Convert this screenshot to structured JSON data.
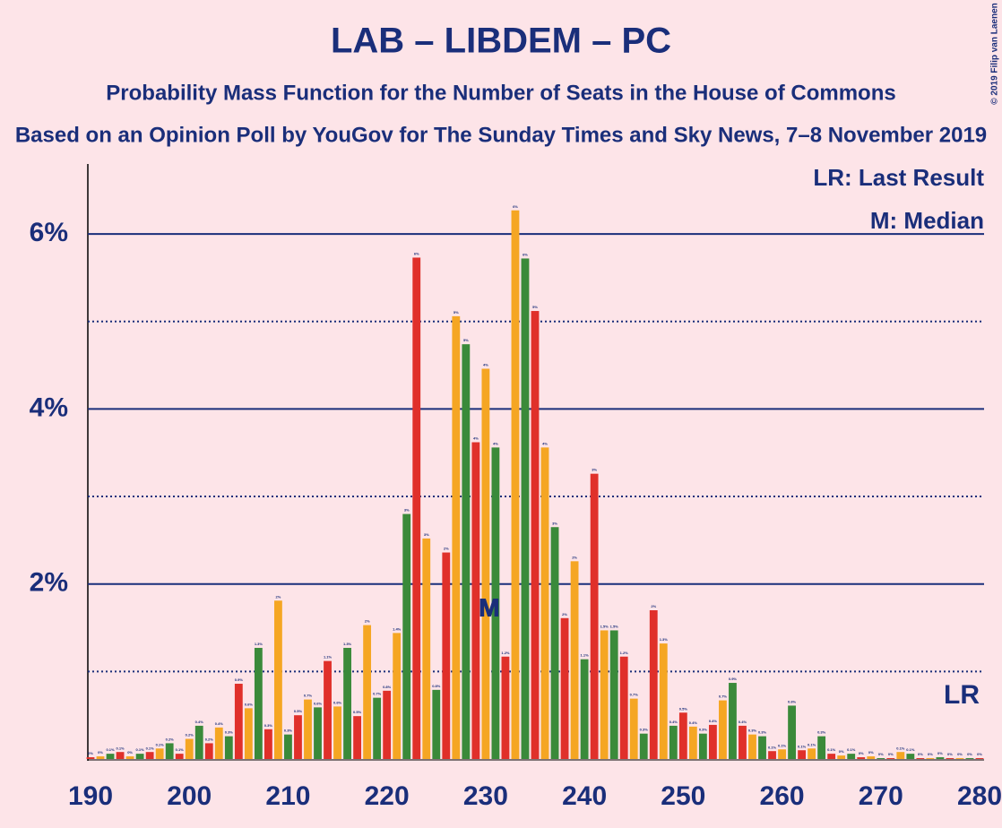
{
  "chart_data": {
    "type": "bar",
    "title": "LAB – LIBDEM – PC",
    "subtitle": "Probability Mass Function for the Number of Seats in the House of Commons",
    "subtitle2": "Based on an Opinion Poll by YouGov for The Sunday Times and Sky News, 7–8 November 2019",
    "copyright": "© 2019 Filip van Laenen",
    "legend_lines": [
      "LR: Last Result",
      "M: Median"
    ],
    "median": 230,
    "median_label": "M",
    "last_result": 280,
    "last_result_label": "LR",
    "x": [
      190,
      191,
      192,
      193,
      194,
      195,
      196,
      197,
      198,
      199,
      200,
      201,
      202,
      203,
      204,
      205,
      206,
      207,
      208,
      209,
      210,
      211,
      212,
      213,
      214,
      215,
      216,
      217,
      218,
      219,
      220,
      221,
      222,
      223,
      224,
      225,
      226,
      227,
      228,
      229,
      230,
      231,
      232,
      233,
      234,
      235,
      236,
      237,
      238,
      239,
      240,
      241,
      242,
      243,
      244,
      245,
      246,
      247,
      248,
      249,
      250,
      251,
      252,
      253,
      254,
      255,
      256,
      257,
      258,
      259,
      260,
      261,
      262,
      263,
      264,
      265,
      266,
      267,
      268,
      269,
      270,
      271,
      272,
      273,
      274,
      275,
      276,
      277,
      278,
      279,
      280
    ],
    "values": [
      0.02,
      0.03,
      0.06,
      0.08,
      0.03,
      0.06,
      0.08,
      0.12,
      0.18,
      0.06,
      0.23,
      0.38,
      0.18,
      0.36,
      0.26,
      0.86,
      0.58,
      1.27,
      0.34,
      1.81,
      0.28,
      0.5,
      0.68,
      0.59,
      1.12,
      0.6,
      1.27,
      0.49,
      1.53,
      0.7,
      0.78,
      1.44,
      2.8,
      5.73,
      2.52,
      0.79,
      2.36,
      5.06,
      4.74,
      3.62,
      4.46,
      3.56,
      1.17,
      6.27,
      5.72,
      5.12,
      3.56,
      2.65,
      1.61,
      2.26,
      1.14,
      3.26,
      1.47,
      1.47,
      1.17,
      0.69,
      0.29,
      1.7,
      1.32,
      0.38,
      0.53,
      0.37,
      0.29,
      0.39,
      0.67,
      0.87,
      0.38,
      0.28,
      0.26,
      0.09,
      0.11,
      0.61,
      0.1,
      0.12,
      0.26,
      0.06,
      0.04,
      0.06,
      0.02,
      0.03,
      0.01,
      0.01,
      0.08,
      0.06,
      0.01,
      0.01,
      0.02,
      0.01,
      0.01,
      0.01,
      0.01
    ],
    "value_labels": [
      "0%",
      "0%",
      "0.1%",
      "0.1%",
      "0%",
      "0.1%",
      "0.1%",
      "0.1%",
      "0.2%",
      "0.1%",
      "0.2%",
      "0.4%",
      "0.2%",
      "0.4%",
      "0.3%",
      "0.9%",
      "0.6%",
      "1.3%",
      "0.3%",
      "2%",
      "0.3%",
      "0.5%",
      "0.7%",
      "0.6%",
      "1.1%",
      "0.6%",
      "1.3%",
      "0.5%",
      "2%",
      "0.7%",
      "0.8%",
      "1.4%",
      "3%",
      "6%",
      "3%",
      "0.8%",
      "2%",
      "5%",
      "5%",
      "4%",
      "4%",
      "4%",
      "1.2%",
      "6%",
      "6%",
      "5%",
      "4%",
      "3%",
      "2%",
      "2%",
      "1.1%",
      "3%",
      "1.5%",
      "1.5%",
      "1.2%",
      "0.7%",
      "0.3%",
      "2%",
      "1.3%",
      "0.4%",
      "0.5%",
      "0.4%",
      "0.3%",
      "0.4%",
      "0.7%",
      "0.9%",
      "0.4%",
      "0.3%",
      "0.3%",
      "0.1%",
      "0.1%",
      "0.6%",
      "0.1%",
      "0.1%",
      "0.3%",
      "0.1%",
      "0%",
      "0.1%",
      "0%",
      "0%",
      "0%",
      "0%",
      "0.1%",
      "0.1%",
      "0%",
      "0%",
      "0%",
      "0%",
      "0%",
      "0%",
      "0%"
    ],
    "colors": [
      "#e0302a",
      "#f5a623",
      "#3a8a3a"
    ],
    "xlim": [
      190,
      280
    ],
    "xticks": [
      190,
      200,
      210,
      220,
      230,
      240,
      250,
      260,
      270,
      280
    ],
    "ylim": [
      0,
      6.8
    ],
    "yticks": [
      {
        "value": 2,
        "label": "2%"
      },
      {
        "value": 4,
        "label": "4%"
      },
      {
        "value": 6,
        "label": "6%"
      }
    ],
    "minor_yticks": [
      1,
      3,
      5
    ],
    "grid": true
  }
}
